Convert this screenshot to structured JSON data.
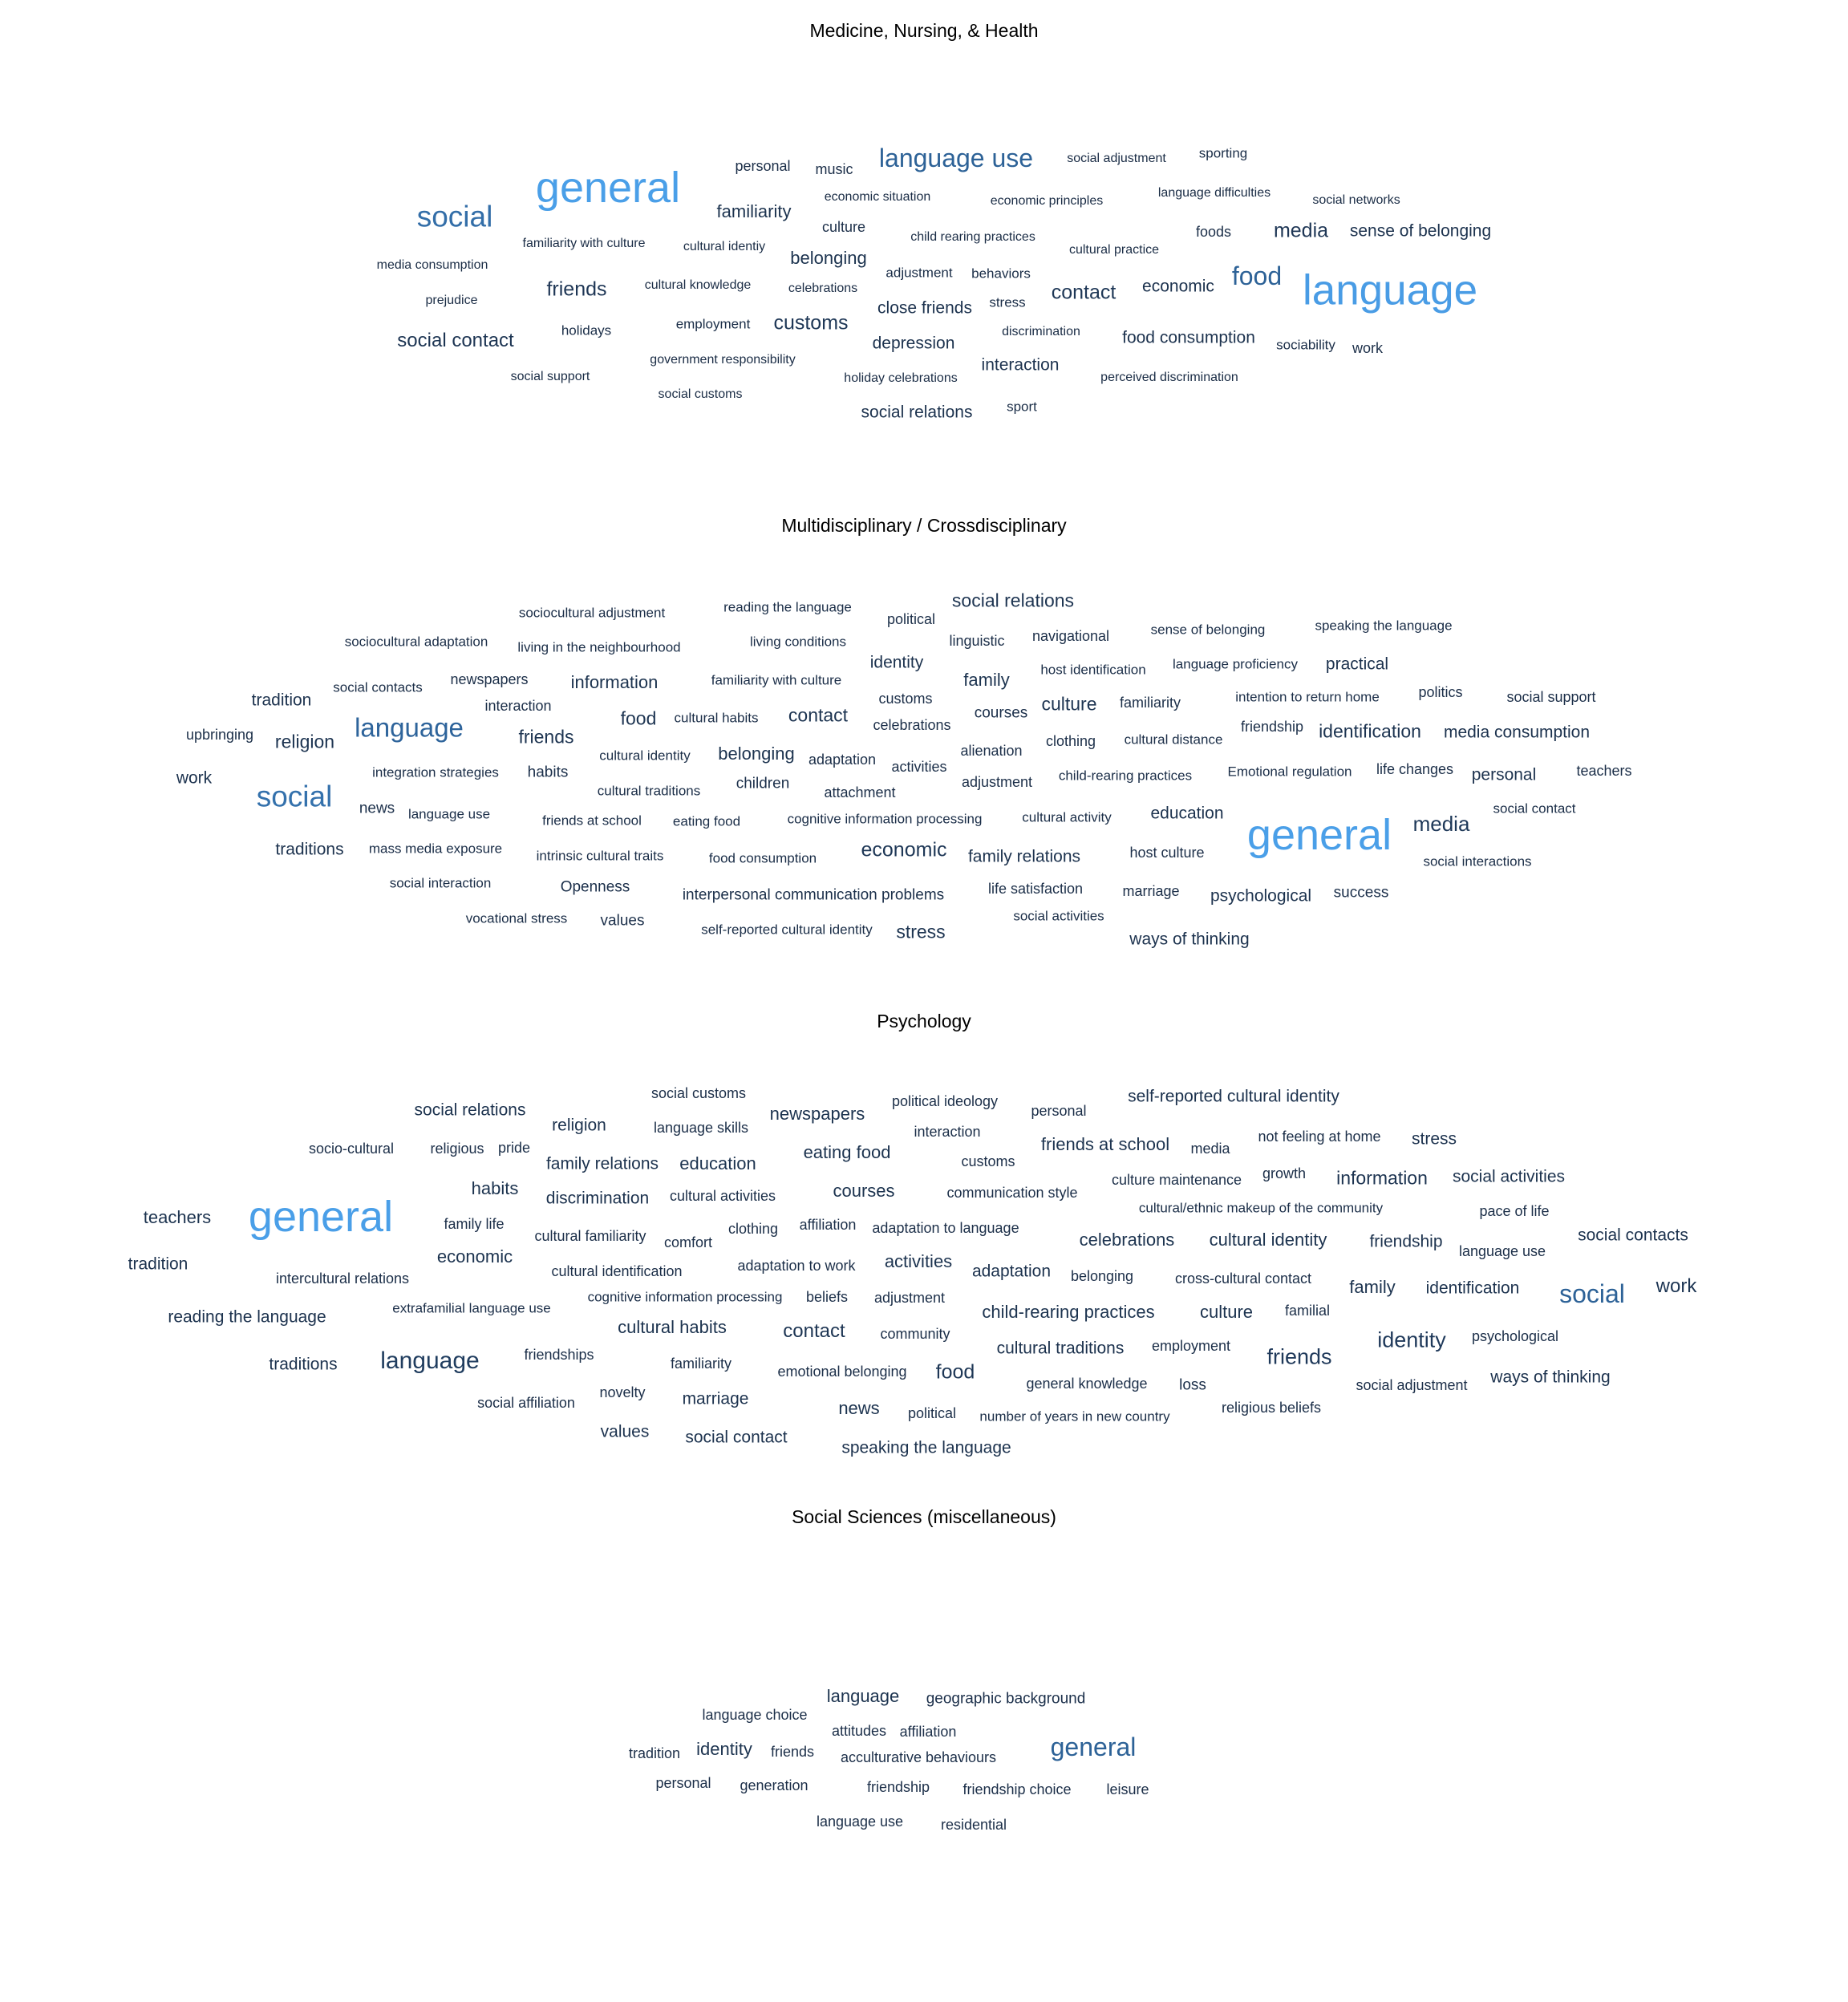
{
  "chart_data": [
    {
      "type": "wordcloud",
      "title": "Medicine, Nursing, & Health",
      "palette": {
        "low": "#1a2c45",
        "mid": "#2c5f94",
        "high": "#4a9fe8"
      },
      "words": [
        [
          "general",
          100
        ],
        [
          "language",
          98
        ],
        [
          "social",
          62
        ],
        [
          "language use",
          52
        ],
        [
          "food",
          52
        ],
        [
          "customs",
          38
        ],
        [
          "contact",
          38
        ],
        [
          "media",
          36
        ],
        [
          "friends",
          36
        ],
        [
          "social contact",
          34
        ],
        [
          "familiarity",
          30
        ],
        [
          "belonging",
          30
        ],
        [
          "close friends",
          28
        ],
        [
          "depression",
          28
        ],
        [
          "interaction",
          28
        ],
        [
          "economic",
          28
        ],
        [
          "food consumption",
          28
        ],
        [
          "sense of belonging",
          28
        ],
        [
          "social relations",
          28
        ],
        [
          "personal",
          22
        ],
        [
          "music",
          22
        ],
        [
          "culture",
          22
        ],
        [
          "foods",
          22
        ],
        [
          "work",
          22
        ],
        [
          "sporting",
          20
        ],
        [
          "stress",
          20
        ],
        [
          "sport",
          20
        ],
        [
          "sociability",
          20
        ],
        [
          "adjustment",
          20
        ],
        [
          "behaviors",
          20
        ],
        [
          "holidays",
          20
        ],
        [
          "employment",
          20
        ],
        [
          "social adjustment",
          18
        ],
        [
          "economic situation",
          18
        ],
        [
          "economic principles",
          18
        ],
        [
          "language difficulties",
          18
        ],
        [
          "social networks",
          18
        ],
        [
          "child rearing practices",
          18
        ],
        [
          "cultural practice",
          18
        ],
        [
          "familiarity with culture",
          18
        ],
        [
          "cultural identiy",
          18
        ],
        [
          "media consumption",
          18
        ],
        [
          "cultural knowledge",
          18
        ],
        [
          "celebrations",
          18
        ],
        [
          "prejudice",
          18
        ],
        [
          "discrimination",
          18
        ],
        [
          "government responsibility",
          18
        ],
        [
          "holiday celebrations",
          18
        ],
        [
          "perceived discrimination",
          18
        ],
        [
          "social support",
          18
        ],
        [
          "social customs",
          18
        ]
      ]
    },
    {
      "type": "wordcloud",
      "title": "Multidisciplinary / Crossdisciplinary",
      "palette": {
        "low": "#1a2c45",
        "mid": "#2c5f94",
        "high": "#4a9fe8"
      },
      "words": [
        [
          "general",
          100
        ],
        [
          "social",
          64
        ],
        [
          "language",
          54
        ],
        [
          "media",
          40
        ],
        [
          "economic",
          38
        ],
        [
          "social relations",
          32
        ],
        [
          "friends",
          32
        ],
        [
          "religion",
          32
        ],
        [
          "culture",
          32
        ],
        [
          "identification",
          32
        ],
        [
          "stress",
          32
        ],
        [
          "contact",
          32
        ],
        [
          "food",
          32
        ],
        [
          "belonging",
          30
        ],
        [
          "family",
          30
        ],
        [
          "information",
          30
        ],
        [
          "tradition",
          28
        ],
        [
          "traditions",
          28
        ],
        [
          "work",
          28
        ],
        [
          "practical",
          28
        ],
        [
          "identity",
          28
        ],
        [
          "education",
          28
        ],
        [
          "personal",
          28
        ],
        [
          "psychological",
          28
        ],
        [
          "family relations",
          28
        ],
        [
          "ways of thinking",
          28
        ],
        [
          "media consumption",
          28
        ],
        [
          "news",
          24
        ],
        [
          "habits",
          24
        ],
        [
          "courses",
          24
        ],
        [
          "interpersonal communication problems",
          24
        ],
        [
          "values",
          24
        ],
        [
          "Openness",
          24
        ],
        [
          "success",
          24
        ],
        [
          "children",
          24
        ],
        [
          "political",
          22
        ],
        [
          "linguistic",
          22
        ],
        [
          "navigational",
          22
        ],
        [
          "upbringing",
          22
        ],
        [
          "customs",
          22
        ],
        [
          "celebrations",
          22
        ],
        [
          "adaptation",
          22
        ],
        [
          "activities",
          22
        ],
        [
          "alienation",
          22
        ],
        [
          "clothing",
          22
        ],
        [
          "attachment",
          22
        ],
        [
          "adjustment",
          22
        ],
        [
          "marriage",
          22
        ],
        [
          "life satisfaction",
          22
        ],
        [
          "host culture",
          22
        ],
        [
          "politics",
          22
        ],
        [
          "friendship",
          22
        ],
        [
          "familiarity",
          22
        ],
        [
          "teachers",
          22
        ],
        [
          "life changes",
          22
        ],
        [
          "social support",
          22
        ],
        [
          "interaction",
          22
        ],
        [
          "newspapers",
          22
        ],
        [
          "reading the language",
          20
        ],
        [
          "sociocultural adjustment",
          20
        ],
        [
          "sociocultural adaptation",
          20
        ],
        [
          "living conditions",
          20
        ],
        [
          "living in the neighbourhood",
          20
        ],
        [
          "sense of belonging",
          20
        ],
        [
          "speaking the language",
          20
        ],
        [
          "host identification",
          20
        ],
        [
          "language proficiency",
          20
        ],
        [
          "familiarity with culture",
          20
        ],
        [
          "social contacts",
          20
        ],
        [
          "intention to return home",
          20
        ],
        [
          "cultural habits",
          20
        ],
        [
          "cultural identity",
          20
        ],
        [
          "cultural distance",
          20
        ],
        [
          "integration strategies",
          20
        ],
        [
          "child-rearing practices",
          20
        ],
        [
          "Emotional regulation",
          20
        ],
        [
          "cultural traditions",
          20
        ],
        [
          "language use",
          20
        ],
        [
          "friends at school",
          20
        ],
        [
          "eating food",
          20
        ],
        [
          "cognitive information processing",
          20
        ],
        [
          "cultural activity",
          20
        ],
        [
          "social contact",
          20
        ],
        [
          "mass media exposure",
          20
        ],
        [
          "intrinsic cultural traits",
          20
        ],
        [
          "food consumption",
          20
        ],
        [
          "social interactions",
          20
        ],
        [
          "social interaction",
          20
        ],
        [
          "vocational stress",
          20
        ],
        [
          "self-reported cultural identity",
          20
        ],
        [
          "social activities",
          20
        ]
      ]
    },
    {
      "type": "wordcloud",
      "title": "Psychology",
      "palette": {
        "low": "#1a2c45",
        "mid": "#2c5f94",
        "high": "#4a9fe8"
      },
      "words": [
        [
          "general",
          100
        ],
        [
          "social",
          52
        ],
        [
          "language",
          48
        ],
        [
          "identity",
          42
        ],
        [
          "friends",
          42
        ],
        [
          "food",
          38
        ],
        [
          "work",
          34
        ],
        [
          "contact",
          34
        ],
        [
          "information",
          32
        ],
        [
          "family",
          30
        ],
        [
          "newspapers",
          30
        ],
        [
          "education",
          30
        ],
        [
          "eating food",
          30
        ],
        [
          "friends at school",
          30
        ],
        [
          "courses",
          30
        ],
        [
          "activities",
          30
        ],
        [
          "celebrations",
          30
        ],
        [
          "cultural identity",
          30
        ],
        [
          "child-rearing practices",
          30
        ],
        [
          "cultural habits",
          30
        ],
        [
          "habits",
          30
        ],
        [
          "economic",
          30
        ],
        [
          "teachers",
          30
        ],
        [
          "news",
          30
        ],
        [
          "culture",
          30
        ],
        [
          "stress",
          28
        ],
        [
          "adaptation",
          28
        ],
        [
          "values",
          28
        ],
        [
          "social contact",
          28
        ],
        [
          "speaking the language",
          28
        ],
        [
          "religion",
          28
        ],
        [
          "family relations",
          28
        ],
        [
          "social relations",
          28
        ],
        [
          "self-reported cultural identity",
          28
        ],
        [
          "tradition",
          28
        ],
        [
          "traditions",
          28
        ],
        [
          "reading the language",
          28
        ],
        [
          "social contacts",
          28
        ],
        [
          "identification",
          28
        ],
        [
          "social activities",
          28
        ],
        [
          "friendship",
          28
        ],
        [
          "cultural traditions",
          28
        ],
        [
          "marriage",
          28
        ],
        [
          "discrimination",
          28
        ],
        [
          "ways of thinking",
          28
        ],
        [
          "loss",
          24
        ],
        [
          "social customs",
          22
        ],
        [
          "political ideology",
          22
        ],
        [
          "personal",
          22
        ],
        [
          "language skills",
          22
        ],
        [
          "interaction",
          22
        ],
        [
          "socio-cultural",
          22
        ],
        [
          "religious",
          22
        ],
        [
          "pride",
          22
        ],
        [
          "media",
          22
        ],
        [
          "not feeling at home",
          22
        ],
        [
          "growth",
          22
        ],
        [
          "customs",
          22
        ],
        [
          "culture maintenance",
          22
        ],
        [
          "cultural activities",
          22
        ],
        [
          "communication style",
          22
        ],
        [
          "cultural/ethnic makeup of the community",
          20
        ],
        [
          "pace of life",
          22
        ],
        [
          "family life",
          22
        ],
        [
          "cultural familiarity",
          22
        ],
        [
          "comfort",
          22
        ],
        [
          "clothing",
          22
        ],
        [
          "affiliation",
          22
        ],
        [
          "adaptation to language",
          22
        ],
        [
          "language use",
          22
        ],
        [
          "intercultural relations",
          22
        ],
        [
          "cultural identification",
          22
        ],
        [
          "adaptation to work",
          22
        ],
        [
          "belonging",
          22
        ],
        [
          "cross-cultural contact",
          22
        ],
        [
          "extrafamilial language use",
          20
        ],
        [
          "cognitive information processing",
          20
        ],
        [
          "beliefs",
          22
        ],
        [
          "adjustment",
          22
        ],
        [
          "familial",
          22
        ],
        [
          "community",
          22
        ],
        [
          "employment",
          22
        ],
        [
          "psychological",
          22
        ],
        [
          "friendships",
          22
        ],
        [
          "familiarity",
          22
        ],
        [
          "emotional belonging",
          22
        ],
        [
          "general knowledge",
          22
        ],
        [
          "social adjustment",
          22
        ],
        [
          "novelty",
          22
        ],
        [
          "social affiliation",
          22
        ],
        [
          "political",
          22
        ],
        [
          "number of years in new country",
          20
        ],
        [
          "religious beliefs",
          22
        ]
      ]
    },
    {
      "type": "wordcloud",
      "title": "Social Sciences (miscellaneous)",
      "palette": {
        "low": "#1a2c45",
        "mid": "#2c5f94",
        "high": "#4a9fe8"
      },
      "words": [
        [
          "general",
          52
        ],
        [
          "language",
          30
        ],
        [
          "identity",
          30
        ],
        [
          "geographic background",
          24
        ],
        [
          "language choice",
          22
        ],
        [
          "attitudes",
          22
        ],
        [
          "affiliation",
          22
        ],
        [
          "tradition",
          22
        ],
        [
          "friends",
          22
        ],
        [
          "acculturative behaviours",
          22
        ],
        [
          "personal",
          22
        ],
        [
          "generation",
          22
        ],
        [
          "friendship",
          22
        ],
        [
          "friendship choice",
          22
        ],
        [
          "leisure",
          22
        ],
        [
          "language use",
          22
        ],
        [
          "residential",
          22
        ]
      ]
    }
  ]
}
